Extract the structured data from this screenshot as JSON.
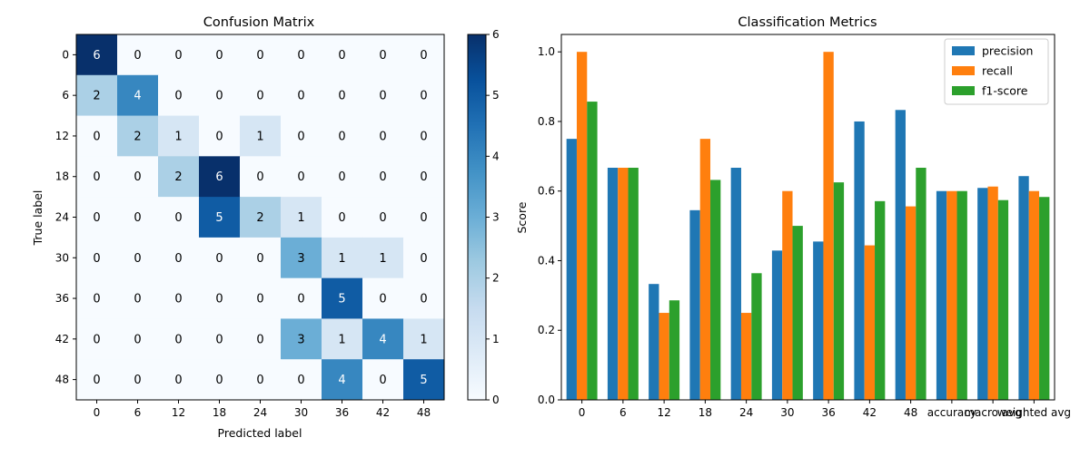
{
  "chart_data": [
    {
      "type": "heatmap",
      "title": "Confusion Matrix",
      "xlabel": "Predicted label",
      "ylabel": "True label",
      "x_categories": [
        "0",
        "6",
        "12",
        "18",
        "24",
        "30",
        "36",
        "42",
        "48"
      ],
      "y_categories": [
        "0",
        "6",
        "12",
        "18",
        "24",
        "30",
        "36",
        "42",
        "48"
      ],
      "matrix": [
        [
          6,
          0,
          0,
          0,
          0,
          0,
          0,
          0,
          0
        ],
        [
          2,
          4,
          0,
          0,
          0,
          0,
          0,
          0,
          0
        ],
        [
          0,
          2,
          1,
          0,
          1,
          0,
          0,
          0,
          0
        ],
        [
          0,
          0,
          2,
          6,
          0,
          0,
          0,
          0,
          0
        ],
        [
          0,
          0,
          0,
          5,
          2,
          1,
          0,
          0,
          0
        ],
        [
          0,
          0,
          0,
          0,
          0,
          3,
          1,
          1,
          0
        ],
        [
          0,
          0,
          0,
          0,
          0,
          0,
          5,
          0,
          0
        ],
        [
          0,
          0,
          0,
          0,
          0,
          3,
          1,
          4,
          1
        ],
        [
          0,
          0,
          0,
          0,
          0,
          0,
          4,
          0,
          5
        ]
      ],
      "colorbar": {
        "min": 0,
        "max": 6,
        "ticks": [
          "0",
          "1",
          "2",
          "3",
          "4",
          "5",
          "6"
        ]
      },
      "colormap": "Blues"
    },
    {
      "type": "bar",
      "title": "Classification Metrics",
      "xlabel": "",
      "ylabel": "Score",
      "categories": [
        "0",
        "6",
        "12",
        "18",
        "24",
        "30",
        "36",
        "42",
        "48",
        "accuracy",
        "macro avg",
        "weighted avg"
      ],
      "series": [
        {
          "name": "precision",
          "color": "#1f77b4",
          "values": [
            0.75,
            0.667,
            0.333,
            0.545,
            0.667,
            0.429,
            0.455,
            0.8,
            0.833,
            0.6,
            0.609,
            0.643
          ]
        },
        {
          "name": "recall",
          "color": "#ff7f0e",
          "values": [
            1.0,
            0.667,
            0.25,
            0.75,
            0.25,
            0.6,
            1.0,
            0.444,
            0.556,
            0.6,
            0.613,
            0.6
          ]
        },
        {
          "name": "f1-score",
          "color": "#2ca02c",
          "values": [
            0.857,
            0.667,
            0.286,
            0.632,
            0.364,
            0.5,
            0.625,
            0.571,
            0.667,
            0.6,
            0.574,
            0.583
          ]
        }
      ],
      "ylim": [
        0,
        1.05
      ],
      "yticks": [
        "0.0",
        "0.2",
        "0.4",
        "0.6",
        "0.8",
        "1.0"
      ],
      "legend_position": "top-right"
    }
  ]
}
